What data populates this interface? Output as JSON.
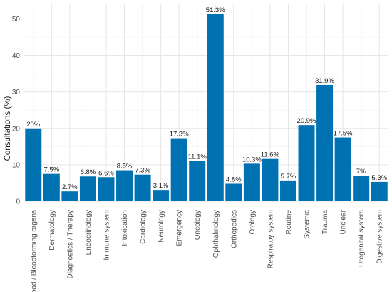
{
  "colors": {
    "bar": "#0072B2",
    "grid_major": "#e6e6e6",
    "grid_minor": "#f2f2f2",
    "text": "#4d4d4d"
  },
  "chart_data": {
    "type": "bar",
    "title": "",
    "xlabel": "",
    "ylabel": "Consultations (%)",
    "ylim": [
      0,
      54
    ],
    "yticks": [
      0,
      10,
      20,
      30,
      40,
      50
    ],
    "grid": true,
    "categories": [
      "Blood / Bloodforming organs",
      "Dermatology",
      "Diagnostics / Therapy",
      "Endocrinology",
      "Immune system",
      "Intoxication",
      "Cardiology",
      "Neurology",
      "Emergency",
      "Oncology",
      "Ophthalmology",
      "Orthopedics",
      "Otology",
      "Respiratoy system",
      "Routine",
      "Systemic",
      "Trauma",
      "Unclear",
      "Urogenital system",
      "Digestive system"
    ],
    "values": [
      20,
      7.5,
      2.7,
      6.8,
      6.6,
      8.5,
      7.3,
      3.1,
      17.3,
      11.1,
      51.3,
      4.8,
      10.3,
      11.6,
      5.7,
      20.9,
      31.9,
      17.5,
      7,
      5.3
    ],
    "data_labels": [
      "20%",
      "7.5%",
      "2.7%",
      "6.8%",
      "6.6%",
      "8.5%",
      "7.3%",
      "3.1%",
      "17.3%",
      "11.1%",
      "51.3%",
      "4.8%",
      "10.3%",
      "11.6%",
      "5.7%",
      "20.9%",
      "31.9%",
      "17.5%",
      "7%",
      "5.3%"
    ]
  }
}
